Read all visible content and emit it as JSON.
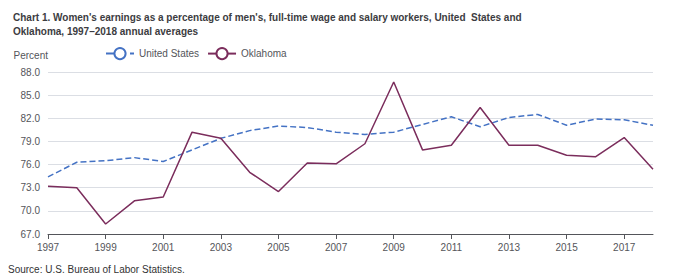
{
  "chart_data": {
    "type": "line",
    "title": "Chart 1. Women's earnings as a percentage of men's, full-time wage and salary workers, United  States and\nOklahoma, 1997–2018 annual averages",
    "ylabel": "Percent",
    "annotations": [
      "Source: U.S. Bureau of Labor Statistics."
    ],
    "x": [
      1997,
      1998,
      1999,
      2000,
      2001,
      2002,
      2003,
      2004,
      2005,
      2006,
      2007,
      2008,
      2009,
      2010,
      2011,
      2012,
      2013,
      2014,
      2015,
      2016,
      2017,
      2018
    ],
    "series": [
      {
        "name": "United States",
        "color": "#4472C4",
        "line_style": "dashed",
        "values": [
          74.4,
          76.3,
          76.5,
          76.9,
          76.4,
          77.9,
          79.4,
          80.4,
          81.0,
          80.8,
          80.2,
          79.9,
          80.2,
          81.2,
          82.2,
          80.9,
          82.1,
          82.5,
          81.1,
          81.9,
          81.8,
          81.1
        ]
      },
      {
        "name": "Oklahoma",
        "color": "#7B2D5C",
        "line_style": "solid",
        "values": [
          73.2,
          73.0,
          68.3,
          71.3,
          71.8,
          80.2,
          79.4,
          75.0,
          72.5,
          76.2,
          76.1,
          78.7,
          86.7,
          77.9,
          78.5,
          83.4,
          78.5,
          78.5,
          77.2,
          77.0,
          79.5,
          75.4
        ]
      }
    ],
    "xlim": [
      1997,
      2018
    ],
    "xticks": [
      1997,
      1999,
      2001,
      2003,
      2005,
      2007,
      2009,
      2011,
      2013,
      2015,
      2017
    ],
    "ylim": [
      67.0,
      88.0
    ],
    "yticks": [
      {
        "value": 67.0,
        "label": "67.0"
      },
      {
        "value": 70.0,
        "label": "70.0"
      },
      {
        "value": 73.0,
        "label": "73.0"
      },
      {
        "value": 76.0,
        "label": "76.0"
      },
      {
        "value": 79.0,
        "label": "79.0"
      },
      {
        "value": 82.0,
        "label": "82.0"
      },
      {
        "value": 85.0,
        "label": "85.0"
      },
      {
        "value": 88.0,
        "label": "88.0"
      }
    ],
    "grid": "y",
    "legend": "upper left"
  }
}
